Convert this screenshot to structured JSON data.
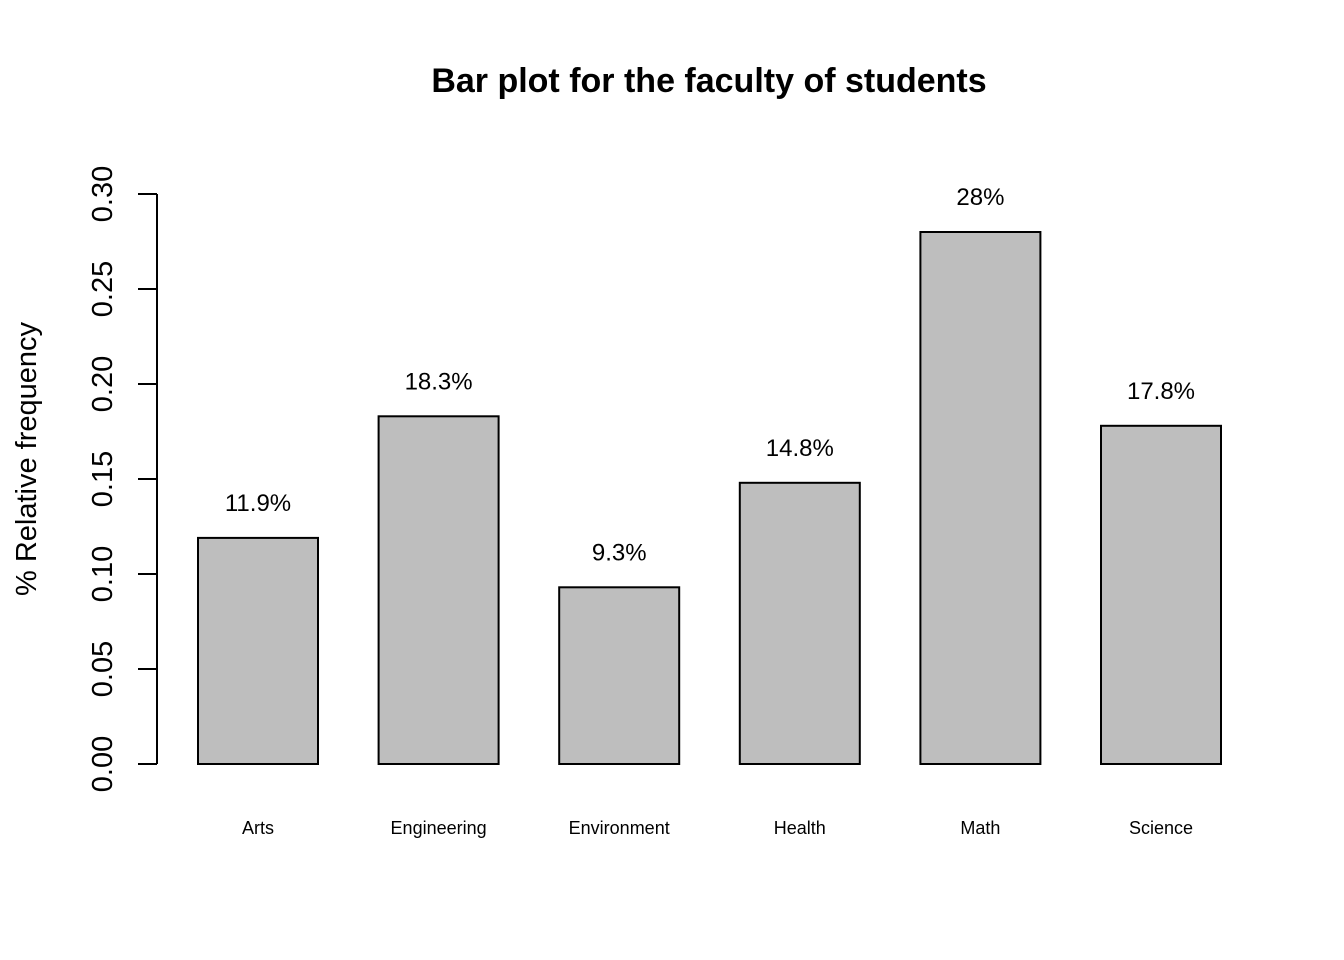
{
  "chart_data": {
    "type": "bar",
    "title": "Bar plot for the faculty of students",
    "xlabel": "",
    "ylabel": "% Relative frequency",
    "categories": [
      "Arts",
      "Engineering",
      "Environment",
      "Health",
      "Math",
      "Science"
    ],
    "values": [
      0.119,
      0.183,
      0.093,
      0.148,
      0.28,
      0.178
    ],
    "data_labels": [
      "11.9%",
      "18.3%",
      "9.3%",
      "14.8%",
      "28%",
      "17.8%"
    ],
    "ylim": [
      0,
      0.3
    ],
    "yticks": [
      "0.00",
      "0.05",
      "0.10",
      "0.15",
      "0.20",
      "0.25",
      "0.30"
    ],
    "bar_color": "#bebebe",
    "grid": false,
    "legend": "none"
  }
}
